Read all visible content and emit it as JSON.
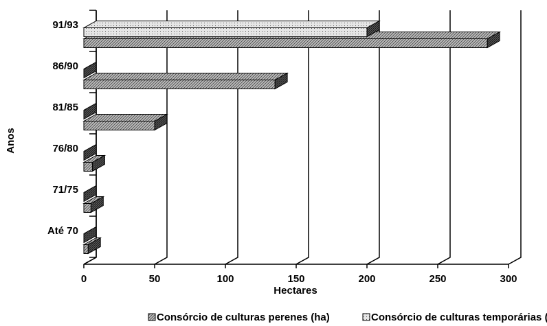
{
  "chart_data": {
    "type": "bar3d_horizontal",
    "categories": [
      "Até 70",
      "71/75",
      "76/80",
      "81/85",
      "86/90",
      "91/93"
    ],
    "series": [
      {
        "name": "Consórcio de culturas perenes (ha)",
        "color": "#bdbdbd",
        "values": [
          3,
          5,
          6,
          50,
          135,
          285
        ]
      },
      {
        "name": "Consórcio de culturas temporárias (ha)",
        "color": "#e6e6e6",
        "values": [
          0,
          0,
          0,
          0,
          0,
          200
        ]
      }
    ],
    "xlabel": "Hectares",
    "ylabel": "Anos",
    "xlim": [
      0,
      300
    ],
    "xticks": [
      0,
      50,
      100,
      150,
      200,
      250,
      300
    ],
    "grid": true,
    "legend": "bottom"
  }
}
